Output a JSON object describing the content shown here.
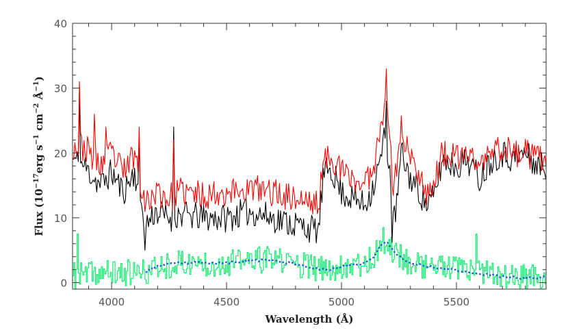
{
  "chart_data": {
    "type": "line",
    "xlabel": "Wavelength (Å)",
    "ylabel_main": "Flux (10",
    "ylabel_sup1": "−17",
    "ylabel_text2": "erg s",
    "ylabel_sup2": "−1",
    "ylabel_text3": " cm",
    "ylabel_sup3": "−2",
    "ylabel_text4": " Å",
    "ylabel_sup4": "−1",
    "ylabel_close": ")",
    "xlim": [
      3830,
      5890
    ],
    "ylim": [
      -1,
      40
    ],
    "x_ticks": [
      4000,
      4500,
      5000,
      5500
    ],
    "x_tick_labels": [
      "4000",
      "4500",
      "5000",
      "5500"
    ],
    "y_ticks": [
      0,
      10,
      20,
      30,
      40
    ],
    "y_tick_labels": [
      "0",
      "10",
      "20",
      "30",
      "40"
    ],
    "grid": false,
    "noise_level": {
      "black": 1.4,
      "red": 1.4,
      "green": 1.3,
      "blue": 0.12
    },
    "series": [
      {
        "key": "black",
        "color": "#000000",
        "step": 5,
        "knots": [
          [
            3830,
            19
          ],
          [
            3880,
            18
          ],
          [
            3950,
            15
          ],
          [
            4000,
            17
          ],
          [
            4050,
            14
          ],
          [
            4100,
            17
          ],
          [
            4150,
            9
          ],
          [
            4190,
            11
          ],
          [
            4250,
            10
          ],
          [
            4300,
            10.5
          ],
          [
            4400,
            10
          ],
          [
            4500,
            10
          ],
          [
            4600,
            11
          ],
          [
            4700,
            10
          ],
          [
            4800,
            9
          ],
          [
            4900,
            8
          ],
          [
            4920,
            16
          ],
          [
            4950,
            18
          ],
          [
            5000,
            14
          ],
          [
            5050,
            13
          ],
          [
            5100,
            12
          ],
          [
            5140,
            15
          ],
          [
            5170,
            19
          ],
          [
            5190,
            23
          ],
          [
            5210,
            18
          ],
          [
            5220,
            8
          ],
          [
            5240,
            12
          ],
          [
            5260,
            20
          ],
          [
            5300,
            16
          ],
          [
            5340,
            14
          ],
          [
            5370,
            12
          ],
          [
            5400,
            13
          ],
          [
            5440,
            19
          ],
          [
            5500,
            18
          ],
          [
            5550,
            19
          ],
          [
            5600,
            16
          ],
          [
            5650,
            19
          ],
          [
            5700,
            20
          ],
          [
            5750,
            19
          ],
          [
            5800,
            20
          ],
          [
            5850,
            18
          ],
          [
            5890,
            18
          ]
        ]
      },
      {
        "key": "red",
        "color": "#ff0000",
        "step": 5,
        "knots": [
          [
            3830,
            21
          ],
          [
            3880,
            21
          ],
          [
            3950,
            18
          ],
          [
            4000,
            20
          ],
          [
            4050,
            17
          ],
          [
            4100,
            20
          ],
          [
            4150,
            12
          ],
          [
            4190,
            14
          ],
          [
            4250,
            13
          ],
          [
            4300,
            14
          ],
          [
            4400,
            13.5
          ],
          [
            4500,
            14
          ],
          [
            4600,
            14.5
          ],
          [
            4700,
            14
          ],
          [
            4800,
            13
          ],
          [
            4900,
            12
          ],
          [
            4920,
            18
          ],
          [
            4950,
            20
          ],
          [
            5000,
            17
          ],
          [
            5050,
            16
          ],
          [
            5100,
            15
          ],
          [
            5140,
            18
          ],
          [
            5170,
            24
          ],
          [
            5190,
            29
          ],
          [
            5210,
            24
          ],
          [
            5220,
            14
          ],
          [
            5240,
            18
          ],
          [
            5260,
            24
          ],
          [
            5300,
            19
          ],
          [
            5340,
            17
          ],
          [
            5370,
            14
          ],
          [
            5400,
            15
          ],
          [
            5440,
            20
          ],
          [
            5500,
            19
          ],
          [
            5550,
            20
          ],
          [
            5600,
            18
          ],
          [
            5650,
            20
          ],
          [
            5700,
            21
          ],
          [
            5750,
            20
          ],
          [
            5800,
            20
          ],
          [
            5850,
            19
          ],
          [
            5890,
            19
          ]
        ]
      },
      {
        "key": "green",
        "color": "#00ee66",
        "step": 5,
        "knots": [
          [
            3830,
            1
          ],
          [
            3900,
            1.3
          ],
          [
            4000,
            1.5
          ],
          [
            4100,
            1.5
          ],
          [
            4150,
            1.5
          ],
          [
            4200,
            2.5
          ],
          [
            4300,
            3
          ],
          [
            4400,
            3
          ],
          [
            4500,
            3
          ],
          [
            4600,
            3.5
          ],
          [
            4700,
            3.5
          ],
          [
            4800,
            3
          ],
          [
            4900,
            2
          ],
          [
            4950,
            2
          ],
          [
            5000,
            2.5
          ],
          [
            5050,
            3
          ],
          [
            5100,
            3
          ],
          [
            5140,
            4
          ],
          [
            5170,
            6
          ],
          [
            5190,
            6.5
          ],
          [
            5210,
            5.5
          ],
          [
            5240,
            4.5
          ],
          [
            5280,
            3.5
          ],
          [
            5300,
            3
          ],
          [
            5400,
            2.5
          ],
          [
            5500,
            2
          ],
          [
            5600,
            1.5
          ],
          [
            5700,
            1
          ],
          [
            5800,
            0.8
          ],
          [
            5890,
            0.8
          ]
        ]
      },
      {
        "key": "blue",
        "color": "#2255dd",
        "step": 10,
        "knots": [
          [
            4150,
            1.7
          ],
          [
            4200,
            2.6
          ],
          [
            4300,
            3
          ],
          [
            4400,
            3.1
          ],
          [
            4500,
            3
          ],
          [
            4600,
            3.4
          ],
          [
            4700,
            3.4
          ],
          [
            4800,
            2.9
          ],
          [
            4900,
            2.1
          ],
          [
            4950,
            2
          ],
          [
            5000,
            2.4
          ],
          [
            5050,
            2.8
          ],
          [
            5100,
            3
          ],
          [
            5140,
            4
          ],
          [
            5170,
            5.8
          ],
          [
            5190,
            6.4
          ],
          [
            5210,
            5.6
          ],
          [
            5240,
            4.4
          ],
          [
            5280,
            3.4
          ],
          [
            5300,
            3
          ],
          [
            5400,
            2.4
          ],
          [
            5500,
            1.9
          ],
          [
            5600,
            1.4
          ],
          [
            5700,
            0.9
          ],
          [
            5800,
            0.7
          ],
          [
            5890,
            0.8
          ]
        ]
      }
    ],
    "spikes": [
      {
        "series": "black",
        "x": 3860,
        "y": 29
      },
      {
        "series": "red",
        "x": 3862,
        "y": 31
      },
      {
        "series": "red",
        "x": 3925,
        "y": 26
      },
      {
        "series": "red",
        "x": 3975,
        "y": 24
      },
      {
        "series": "red",
        "x": 4120,
        "y": 24
      },
      {
        "series": "black",
        "x": 4120,
        "y": 22
      },
      {
        "series": "black",
        "x": 4145,
        "y": 5
      },
      {
        "series": "black",
        "x": 4270,
        "y": 24
      },
      {
        "series": "red",
        "x": 4270,
        "y": 22
      },
      {
        "series": "red",
        "x": 5193,
        "y": 33
      },
      {
        "series": "black",
        "x": 5193,
        "y": 28
      },
      {
        "series": "green",
        "x": 5585,
        "y": 7.5
      },
      {
        "series": "green",
        "x": 5178,
        "y": 8.5
      },
      {
        "series": "green",
        "x": 3850,
        "y": 7.5
      }
    ]
  }
}
